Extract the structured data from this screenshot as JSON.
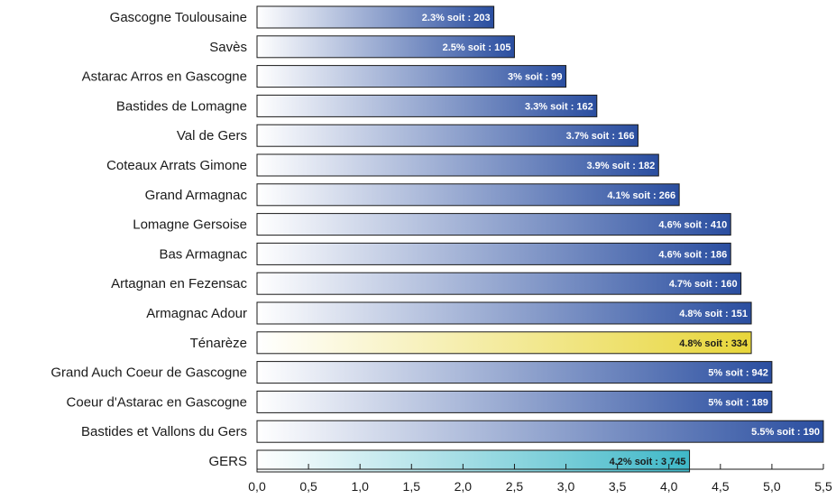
{
  "chart_data": {
    "type": "bar",
    "orientation": "horizontal",
    "categories": [
      "Gascogne Toulousaine",
      "Savès",
      "Astarac Arros en Gascogne",
      "Bastides de Lomagne",
      "Val de Gers",
      "Coteaux Arrats Gimone",
      "Grand Armagnac",
      "Lomagne Gersoise",
      "Bas Armagnac",
      "Artagnan en Fezensac",
      "Armagnac Adour",
      "Ténarèze",
      "Grand Auch Coeur de Gascogne",
      "Coeur d'Astarac en Gascogne",
      "Bastides et Vallons du Gers",
      "GERS"
    ],
    "values": [
      2.3,
      2.5,
      3.0,
      3.3,
      3.7,
      3.9,
      4.1,
      4.6,
      4.6,
      4.7,
      4.8,
      4.8,
      5.0,
      5.0,
      5.5,
      4.2
    ],
    "data_labels": [
      "2.3% soit : 203",
      "2.5% soit : 105",
      "3% soit : 99",
      "3.3% soit : 162",
      "3.7% soit : 166",
      "3.9% soit : 182",
      "4.1% soit : 266",
      "4.6% soit : 410",
      "4.6% soit : 186",
      "4.7% soit : 160",
      "4.8% soit : 151",
      "4.8% soit : 334",
      "5% soit : 942",
      "5% soit : 189",
      "5.5% soit : 190",
      "4.2%  soit : 3 745"
    ],
    "bar_colors": [
      "blue",
      "blue",
      "blue",
      "blue",
      "blue",
      "blue",
      "blue",
      "blue",
      "blue",
      "blue",
      "blue",
      "yellow",
      "blue",
      "blue",
      "blue",
      "teal"
    ],
    "palette": {
      "blue": {
        "start": "#ffffff",
        "end": "#2a4ea0",
        "text": "#ffffff"
      },
      "yellow": {
        "start": "#ffffff",
        "end": "#e8d63a",
        "text": "#1a1a1a"
      },
      "teal": {
        "start": "#ffffff",
        "end": "#3fb8c8",
        "text": "#1a1a1a"
      }
    },
    "xlim": [
      0,
      5.5
    ],
    "xticks": [
      "0,0",
      "0,5",
      "1,0",
      "1,5",
      "2,0",
      "2,5",
      "3,0",
      "3,5",
      "4,0",
      "4,5",
      "5,0",
      "5,5"
    ],
    "title": "",
    "xlabel": "",
    "ylabel": "",
    "grid": false,
    "legend": "none"
  }
}
